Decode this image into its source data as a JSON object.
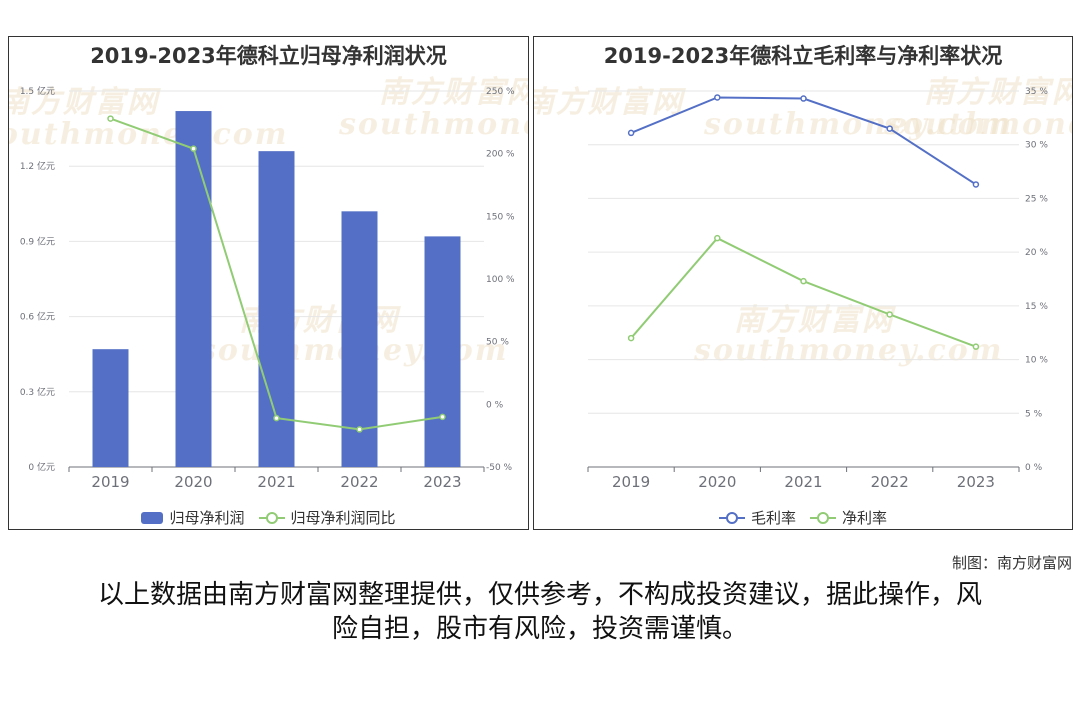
{
  "chart_data": [
    {
      "type": "bar",
      "title": "2019-2023年德科立归母净利润状况",
      "categories": [
        "2019",
        "2020",
        "2021",
        "2022",
        "2023"
      ],
      "series": [
        {
          "name": "归母净利润",
          "type": "bar",
          "axis": "left",
          "values": [
            0.47,
            1.42,
            1.26,
            1.02,
            0.92
          ],
          "color": "#5470c6"
        },
        {
          "name": "归母净利润同比",
          "type": "line",
          "axis": "right",
          "values": [
            228,
            204,
            -11,
            -20,
            -10
          ],
          "color": "#91cc75"
        }
      ],
      "y_left": {
        "range": [
          0,
          1.5
        ],
        "ticks": [
          "0 亿元",
          "0.3 亿元",
          "0.6 亿元",
          "0.9 亿元",
          "1.2 亿元",
          "1.5 亿元"
        ]
      },
      "y_right": {
        "range": [
          -50,
          250
        ],
        "ticks": [
          "-50 %",
          "0 %",
          "50 %",
          "100 %",
          "150 %",
          "200 %",
          "250 %"
        ]
      },
      "grid": true,
      "legend": "bottom"
    },
    {
      "type": "line",
      "title": "2019-2023年德科立毛利率与净利率状况",
      "categories": [
        "2019",
        "2020",
        "2021",
        "2022",
        "2023"
      ],
      "series": [
        {
          "name": "毛利率",
          "values": [
            31.1,
            34.4,
            34.3,
            31.5,
            26.3
          ],
          "color": "#5470c6"
        },
        {
          "name": "净利率",
          "values": [
            12.0,
            21.3,
            17.3,
            14.2,
            11.2
          ],
          "color": "#91cc75"
        }
      ],
      "y_right": {
        "range": [
          0,
          35
        ],
        "ticks": [
          "0 %",
          "5 %",
          "10 %",
          "15 %",
          "20 %",
          "25 %",
          "30 %",
          "35 %"
        ]
      },
      "grid": true,
      "legend": "bottom"
    }
  ],
  "watermark": {
    "cn": "南方财富网",
    "en": "southmoney.com"
  },
  "footer": {
    "credit": "制图：南方财富网",
    "disclaimer_line1": "以上数据由南方财富网整理提供，仅供参考，不构成投资建议，据此操作，风",
    "disclaimer_line2": "险自担，股市有风险，投资需谨慎。"
  }
}
